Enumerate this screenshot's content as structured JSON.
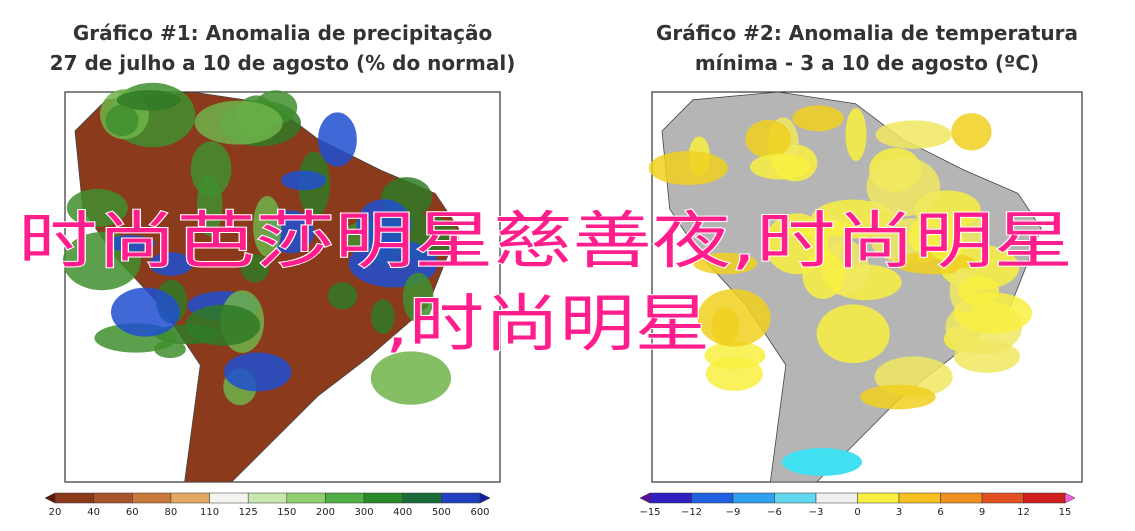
{
  "panels": [
    {
      "title_lines": [
        "Gráfico #1: Anomalia de precipitação",
        "27 de julho a 10 de agosto (% do normal)"
      ],
      "colorbar_labels": [
        "20",
        "40",
        "60",
        "80",
        "110",
        "125",
        "150",
        "200",
        "300",
        "400",
        "500",
        "600"
      ]
    },
    {
      "title_lines": [
        "Gráfico #2: Anomalia de temperatura",
        "mínima - 3 a 10 de agosto (ºC)"
      ],
      "colorbar_labels": [
        "−15",
        "−12",
        "−9",
        "−6",
        "−3",
        "0",
        "3",
        "6",
        "9",
        "12",
        "15"
      ]
    }
  ],
  "overlay": {
    "lines": [
      "时尚芭莎明星慈善夜,时尚明星",
      ",时尚明星"
    ]
  }
}
